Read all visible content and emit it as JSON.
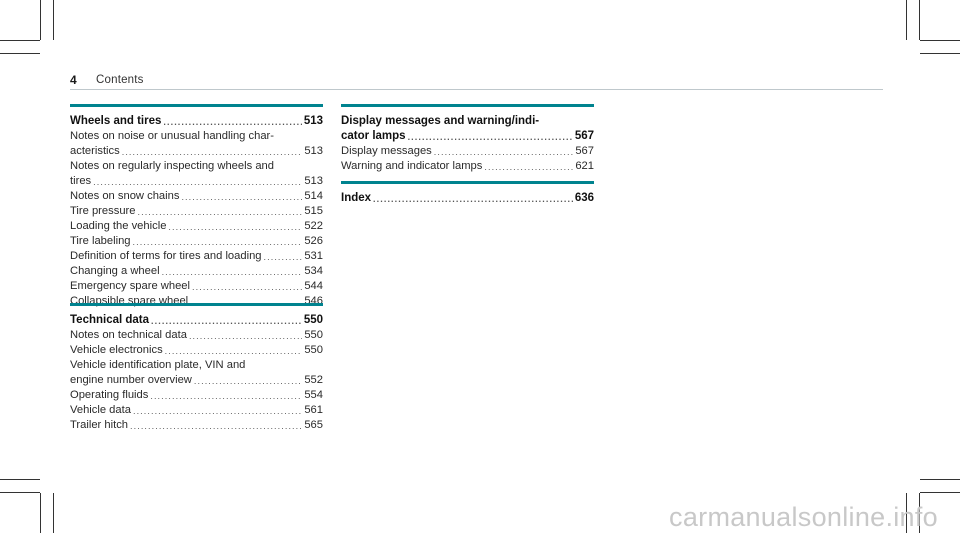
{
  "header": {
    "page_number": "4",
    "title": "Contents"
  },
  "col1": [
    {
      "title": "Wheels and tires",
      "title_page": "513",
      "entries": [
        {
          "lines": [
            "Notes on noise or unusual handling char-"
          ],
          "last": "acteristics",
          "page": "513"
        },
        {
          "lines": [
            "Notes on regularly inspecting wheels and"
          ],
          "last": "tires",
          "page": "513"
        },
        {
          "lines": [],
          "last": "Notes on snow chains",
          "page": "514"
        },
        {
          "lines": [],
          "last": "Tire pressure",
          "page": "515"
        },
        {
          "lines": [],
          "last": "Loading the vehicle",
          "page": "522"
        },
        {
          "lines": [],
          "last": "Tire labeling",
          "page": "526"
        },
        {
          "lines": [],
          "last": "Definition of terms for tires and loading",
          "page": "531"
        },
        {
          "lines": [],
          "last": "Changing a wheel",
          "page": "534"
        },
        {
          "lines": [],
          "last": "Emergency spare wheel",
          "page": "544"
        },
        {
          "lines": [],
          "last": "Collapsible spare wheel",
          "page": "546"
        }
      ]
    },
    {
      "title": "Technical data",
      "title_page": "550",
      "entries": [
        {
          "lines": [],
          "last": "Notes on technical data",
          "page": "550"
        },
        {
          "lines": [],
          "last": "Vehicle electronics",
          "page": "550"
        },
        {
          "lines": [
            "Vehicle identification plate, VIN and"
          ],
          "last": "engine number overview",
          "page": "552"
        },
        {
          "lines": [],
          "last": "Operating fluids",
          "page": "554"
        },
        {
          "lines": [],
          "last": "Vehicle data",
          "page": "561"
        },
        {
          "lines": [],
          "last": "Trailer hitch",
          "page": "565"
        }
      ]
    }
  ],
  "col2": [
    {
      "title_lines": [
        "Display messages and warning/indi-"
      ],
      "title": "cator lamps",
      "title_page": "567",
      "entries": [
        {
          "lines": [],
          "last": "Display messages",
          "page": "567"
        },
        {
          "lines": [],
          "last": "Warning and indicator lamps",
          "page": "621"
        }
      ]
    },
    {
      "title_lines": [],
      "title": "Index",
      "title_page": "636",
      "entries": []
    }
  ],
  "watermark": "carmanualsonline.info",
  "colors": {
    "accent": "#00838f",
    "rule": "#bfc8cc"
  }
}
